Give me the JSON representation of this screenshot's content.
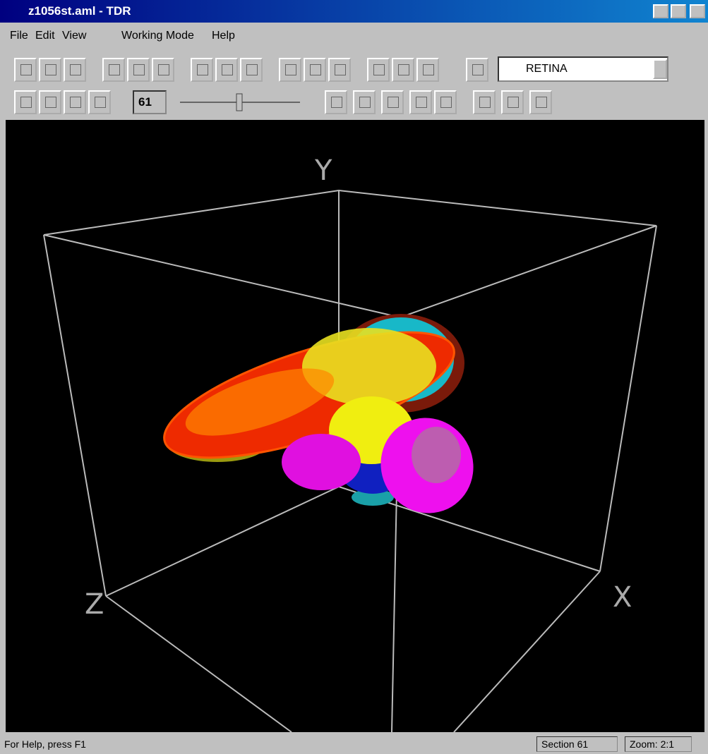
{
  "window": {
    "title": "z1056st.aml - TDR"
  },
  "menu": [
    "File",
    "Edit",
    "View",
    "Working Mode",
    "Help"
  ],
  "toolbar": {
    "structure": "RETINA",
    "section": "61"
  },
  "viewport": {
    "axes": {
      "y": "Y",
      "z": "Z",
      "x": "X"
    }
  },
  "status_bar": {
    "help": "For Help, press F1",
    "section": "Section 61",
    "zoom": "Zoom: 2:1"
  }
}
